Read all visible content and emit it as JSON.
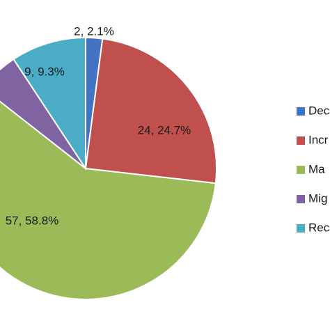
{
  "chart_data": {
    "type": "pie",
    "slices": [
      {
        "legend_label": "Dec",
        "value": 2,
        "percent_label": "2.1%",
        "data_label": "2, 2.1%",
        "color": "#4472C4"
      },
      {
        "legend_label": "Incr",
        "value": 24,
        "percent_label": "24.7%",
        "data_label": "24, 24.7%",
        "color": "#C0504D"
      },
      {
        "legend_label": "Ma",
        "value": 57,
        "percent_label": "58.8%",
        "data_label": "57, 58.8%",
        "color": "#9BBB59"
      },
      {
        "legend_label": "Mig",
        "value": 5,
        "percent_label": "",
        "data_label": "",
        "color": "#8064A2"
      },
      {
        "legend_label": "Rec",
        "value": 9,
        "percent_label": "9.3%",
        "data_label": "9, 9.3%",
        "color": "#4BACC6"
      }
    ],
    "start_angle_deg": 0,
    "direction": "clockwise",
    "legend_position": "right",
    "title": ""
  }
}
